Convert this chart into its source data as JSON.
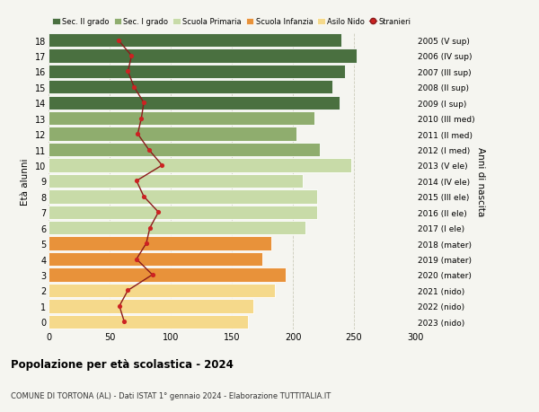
{
  "ages": [
    0,
    1,
    2,
    3,
    4,
    5,
    6,
    7,
    8,
    9,
    10,
    11,
    12,
    13,
    14,
    15,
    16,
    17,
    18
  ],
  "bar_values": [
    163,
    168,
    185,
    194,
    175,
    182,
    210,
    220,
    220,
    208,
    248,
    222,
    203,
    218,
    238,
    232,
    243,
    252,
    240
  ],
  "right_labels": [
    "2023 (nido)",
    "2022 (nido)",
    "2021 (nido)",
    "2020 (mater)",
    "2019 (mater)",
    "2018 (mater)",
    "2017 (I ele)",
    "2016 (II ele)",
    "2015 (III ele)",
    "2014 (IV ele)",
    "2013 (V ele)",
    "2012 (I med)",
    "2011 (II med)",
    "2010 (III med)",
    "2009 (I sup)",
    "2008 (II sup)",
    "2007 (III sup)",
    "2006 (IV sup)",
    "2005 (V sup)"
  ],
  "bar_colors": [
    "#f5d98b",
    "#f5d98b",
    "#f5d98b",
    "#e8923a",
    "#e8923a",
    "#e8923a",
    "#c8dba8",
    "#c8dba8",
    "#c8dba8",
    "#c8dba8",
    "#c8dba8",
    "#8fad6e",
    "#8fad6e",
    "#8fad6e",
    "#4a7040",
    "#4a7040",
    "#4a7040",
    "#4a7040",
    "#4a7040"
  ],
  "stranieri_values": [
    62,
    58,
    65,
    85,
    72,
    80,
    83,
    90,
    78,
    72,
    93,
    82,
    73,
    76,
    78,
    70,
    65,
    68,
    57
  ],
  "xlim": [
    0,
    300
  ],
  "ylim": [
    -0.5,
    18.5
  ],
  "xticks": [
    0,
    50,
    100,
    150,
    200,
    250,
    300
  ],
  "yticks": [
    0,
    1,
    2,
    3,
    4,
    5,
    6,
    7,
    8,
    9,
    10,
    11,
    12,
    13,
    14,
    15,
    16,
    17,
    18
  ],
  "ylabel": "Età alunni",
  "right_ylabel": "Anni di nascita",
  "title": "Popolazione per età scolastica - 2024",
  "subtitle": "COMUNE DI TORTONA (AL) - Dati ISTAT 1° gennaio 2024 - Elaborazione TUTTITALIA.IT",
  "legend_labels": [
    "Sec. II grado",
    "Sec. I grado",
    "Scuola Primaria",
    "Scuola Infanzia",
    "Asilo Nido",
    "Stranieri"
  ],
  "legend_colors": [
    "#4a7040",
    "#8fad6e",
    "#c8dba8",
    "#e8923a",
    "#f5d98b",
    "#cc2222"
  ],
  "stranieri_line_color": "#8b1a1a",
  "stranieri_dot_color": "#cc2222",
  "background_color": "#f5f5f0",
  "grid_color": "#ccccbb"
}
